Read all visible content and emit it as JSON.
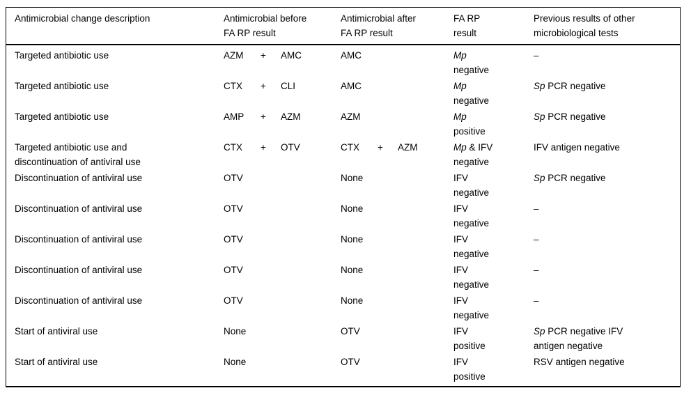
{
  "colors": {
    "text": "#000000",
    "border": "#000000",
    "background": "#ffffff"
  },
  "table": {
    "headers": [
      {
        "id": "change-description",
        "lines": [
          "Antimicrobial change description"
        ]
      },
      {
        "id": "antimicrobial-before",
        "lines": [
          "Antimicrobial before",
          "FA RP result"
        ]
      },
      {
        "id": "antimicrobial-after",
        "lines": [
          "Antimicrobial after",
          "FA RP result"
        ]
      },
      {
        "id": "fa-rp-result",
        "lines": [
          "FA RP",
          "result"
        ]
      },
      {
        "id": "previous-results",
        "lines": [
          "Previous results of other",
          "microbiological tests"
        ]
      }
    ],
    "rows": [
      {
        "desc": [
          [
            {
              "t": "Targeted antibiotic use"
            }
          ]
        ],
        "before": [
          "AZM",
          "+",
          "AMC"
        ],
        "after": [
          "AMC"
        ],
        "result": [
          [
            {
              "t": "Mp",
              "i": true
            }
          ],
          [
            {
              "t": "negative"
            }
          ]
        ],
        "prev": [
          [
            {
              "t": "–"
            }
          ]
        ]
      },
      {
        "desc": [
          [
            {
              "t": "Targeted antibiotic use"
            }
          ]
        ],
        "before": [
          "CTX",
          "+",
          "CLI"
        ],
        "after": [
          "AMC"
        ],
        "result": [
          [
            {
              "t": "Mp",
              "i": true
            }
          ],
          [
            {
              "t": "negative"
            }
          ]
        ],
        "prev": [
          [
            {
              "t": "Sp",
              "i": true
            },
            {
              "t": " PCR negative"
            }
          ]
        ]
      },
      {
        "desc": [
          [
            {
              "t": "Targeted antibiotic use"
            }
          ]
        ],
        "before": [
          "AMP",
          "+",
          "AZM"
        ],
        "after": [
          "AZM"
        ],
        "result": [
          [
            {
              "t": "Mp",
              "i": true
            }
          ],
          [
            {
              "t": "positive"
            }
          ]
        ],
        "prev": [
          [
            {
              "t": "Sp",
              "i": true
            },
            {
              "t": " PCR negative"
            }
          ]
        ]
      },
      {
        "desc": [
          [
            {
              "t": "Targeted antibiotic use and"
            }
          ],
          [
            {
              "t": "discontinuation of antiviral use"
            }
          ]
        ],
        "before": [
          "CTX",
          "+",
          "OTV"
        ],
        "after": [
          "CTX",
          "+",
          "AZM"
        ],
        "result": [
          [
            {
              "t": "Mp",
              "i": true
            },
            {
              "t": " & IFV"
            }
          ],
          [
            {
              "t": "negative"
            }
          ]
        ],
        "prev": [
          [
            {
              "t": "IFV antigen negative"
            }
          ]
        ]
      },
      {
        "desc": [
          [
            {
              "t": "Discontinuation of antiviral use"
            }
          ]
        ],
        "before": [
          "OTV"
        ],
        "after": [
          "None"
        ],
        "result": [
          [
            {
              "t": "IFV"
            }
          ],
          [
            {
              "t": "negative"
            }
          ]
        ],
        "prev": [
          [
            {
              "t": "Sp",
              "i": true
            },
            {
              "t": " PCR negative"
            }
          ]
        ]
      },
      {
        "desc": [
          [
            {
              "t": "Discontinuation of antiviral use"
            }
          ]
        ],
        "before": [
          "OTV"
        ],
        "after": [
          "None"
        ],
        "result": [
          [
            {
              "t": "IFV"
            }
          ],
          [
            {
              "t": "negative"
            }
          ]
        ],
        "prev": [
          [
            {
              "t": "–"
            }
          ]
        ]
      },
      {
        "desc": [
          [
            {
              "t": "Discontinuation of antiviral use"
            }
          ]
        ],
        "before": [
          "OTV"
        ],
        "after": [
          "None"
        ],
        "result": [
          [
            {
              "t": "IFV"
            }
          ],
          [
            {
              "t": "negative"
            }
          ]
        ],
        "prev": [
          [
            {
              "t": "–"
            }
          ]
        ]
      },
      {
        "desc": [
          [
            {
              "t": "Discontinuation of antiviral use"
            }
          ]
        ],
        "before": [
          "OTV"
        ],
        "after": [
          "None"
        ],
        "result": [
          [
            {
              "t": "IFV"
            }
          ],
          [
            {
              "t": "negative"
            }
          ]
        ],
        "prev": [
          [
            {
              "t": "–"
            }
          ]
        ]
      },
      {
        "desc": [
          [
            {
              "t": "Discontinuation of antiviral use"
            }
          ]
        ],
        "before": [
          "OTV"
        ],
        "after": [
          "None"
        ],
        "result": [
          [
            {
              "t": "IFV"
            }
          ],
          [
            {
              "t": "negative"
            }
          ]
        ],
        "prev": [
          [
            {
              "t": "–"
            }
          ]
        ]
      },
      {
        "desc": [
          [
            {
              "t": "Start of antiviral use"
            }
          ]
        ],
        "before": [
          "None"
        ],
        "after": [
          "OTV"
        ],
        "result": [
          [
            {
              "t": "IFV"
            }
          ],
          [
            {
              "t": "positive"
            }
          ]
        ],
        "prev": [
          [
            {
              "t": "Sp",
              "i": true
            },
            {
              "t": " PCR negative IFV"
            }
          ],
          [
            {
              "t": "antigen negative"
            }
          ]
        ]
      },
      {
        "desc": [
          [
            {
              "t": "Start of antiviral use"
            }
          ]
        ],
        "before": [
          "None"
        ],
        "after": [
          "OTV"
        ],
        "result": [
          [
            {
              "t": "IFV"
            }
          ],
          [
            {
              "t": "positive"
            }
          ]
        ],
        "prev": [
          [
            {
              "t": "RSV antigen negative"
            }
          ]
        ]
      }
    ]
  }
}
